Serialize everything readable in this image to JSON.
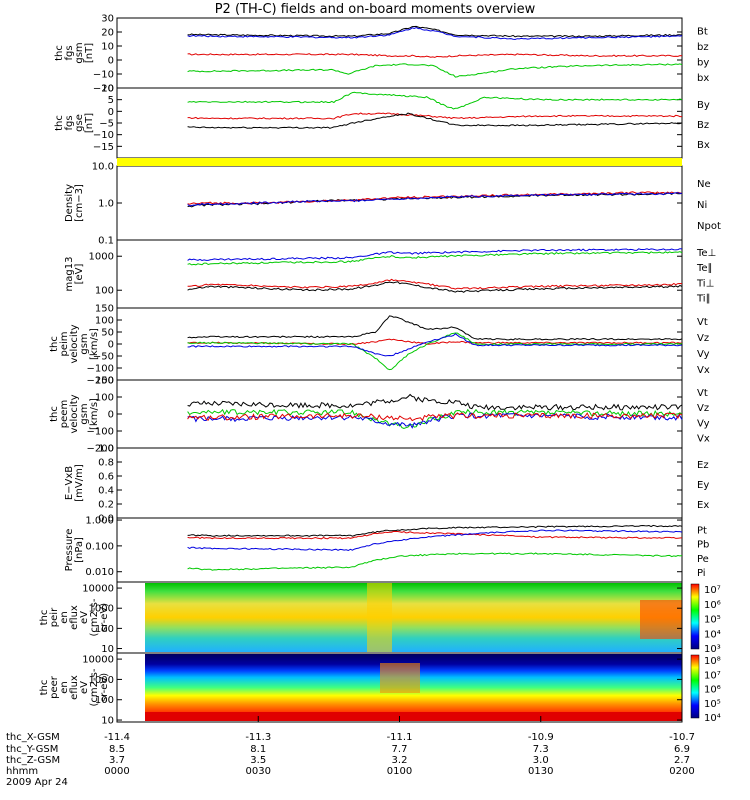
{
  "title": "P2 (TH-C) fields and on-board moments overview",
  "colors": {
    "black": "#000000",
    "red": "#e00000",
    "green": "#00c800",
    "blue": "#0000e0",
    "yellow": "#ffff00",
    "gray": "#b4b4b4"
  },
  "xaxis": {
    "ticks": [
      "0000",
      "0030",
      "0100",
      "0130",
      "0200"
    ],
    "rows": [
      {
        "label": "thc_X-GSM",
        "values": [
          "-11.4",
          "-11.3",
          "-11.1",
          "-10.9",
          "-10.7"
        ]
      },
      {
        "label": "thc_Y-GSM",
        "values": [
          "8.5",
          "8.1",
          "7.7",
          "7.3",
          "6.9"
        ]
      },
      {
        "label": "thc_Z-GSM",
        "values": [
          "3.7",
          "3.5",
          "3.2",
          "3.0",
          "2.7"
        ]
      },
      {
        "label": "hhmm",
        "values": [
          "0000",
          "0030",
          "0100",
          "0130",
          "0200"
        ]
      }
    ],
    "date": "2009 Apr 24"
  },
  "chart_data": [
    {
      "type": "line",
      "ylabel": [
        "thc",
        "fgs",
        "gsm",
        "[nT]"
      ],
      "ylim": [
        -20,
        30
      ],
      "yticks": [
        "30",
        "20",
        "10",
        "0",
        "−10",
        "−20"
      ],
      "ytickvals": [
        30,
        20,
        10,
        0,
        -10,
        -20
      ],
      "legend": [
        {
          "name": "Bt",
          "color": "black"
        },
        {
          "name": "bz",
          "color": "red"
        },
        {
          "name": "by",
          "color": "green"
        },
        {
          "name": "bx",
          "color": "blue"
        }
      ],
      "series": [
        {
          "color": "black",
          "x": [
            0,
            20,
            50,
            58,
            63,
            67,
            72,
            85,
            100,
            120
          ],
          "y": [
            19,
            18,
            17,
            19,
            24,
            22,
            18,
            17,
            17,
            18
          ]
        },
        {
          "color": "blue",
          "x": [
            0,
            20,
            50,
            58,
            63,
            67,
            72,
            85,
            100,
            120
          ],
          "y": [
            18,
            17,
            16,
            18,
            23,
            21,
            17,
            15,
            16,
            17
          ]
        },
        {
          "color": "red",
          "x": [
            0,
            20,
            50,
            58,
            63,
            67,
            72,
            85,
            100,
            120
          ],
          "y": [
            4,
            4,
            4,
            3,
            3,
            2,
            3,
            4,
            3,
            3
          ]
        },
        {
          "color": "green",
          "x": [
            0,
            20,
            46,
            49,
            55,
            62,
            67,
            72,
            85,
            100,
            120
          ],
          "y": [
            -8,
            -8,
            -7,
            -10,
            -4,
            -3,
            -4,
            -12,
            -6,
            -4,
            -3
          ]
        }
      ]
    },
    {
      "type": "line",
      "ylabel": [
        "thc",
        "fgs",
        "gse",
        "[nT]"
      ],
      "ylim": [
        -20,
        10
      ],
      "yticks": [
        "10",
        "5",
        "0",
        "−5",
        "−10",
        "−15"
      ],
      "ytickvals": [
        10,
        5,
        0,
        -5,
        -10,
        -15
      ],
      "legend": [
        {
          "name": "By",
          "color": "green"
        },
        {
          "name": "Bz",
          "color": "red"
        },
        {
          "name": "Bx",
          "color": "black"
        }
      ],
      "series": [
        {
          "color": "green",
          "x": [
            0,
            20,
            46,
            50,
            58,
            66,
            70,
            72,
            78,
            90,
            120
          ],
          "y": [
            4,
            4,
            4,
            8,
            7,
            6,
            2,
            1,
            6,
            5,
            5
          ]
        },
        {
          "color": "red",
          "x": [
            0,
            20,
            46,
            50,
            58,
            66,
            72,
            90,
            120
          ],
          "y": [
            -2,
            -3,
            -3,
            -1,
            -1,
            -2,
            -3,
            -2,
            -2
          ]
        },
        {
          "color": "black",
          "x": [
            0,
            20,
            46,
            50,
            58,
            62,
            66,
            72,
            90,
            120
          ],
          "y": [
            -6,
            -7,
            -7,
            -5,
            -2,
            -1,
            -3,
            -6,
            -6,
            -5
          ]
        }
      ]
    },
    {
      "type": "line",
      "ylabel": [
        "Density",
        "[cm−3]"
      ],
      "log": true,
      "ylim": [
        0.1,
        10
      ],
      "yticks": [
        "10.0",
        "1.0",
        "0.1"
      ],
      "ytickvals": [
        10,
        1,
        0.1
      ],
      "legend": [
        {
          "name": "Ne",
          "color": "red"
        },
        {
          "name": "Ni",
          "color": "black"
        },
        {
          "name": "Npot",
          "color": "blue"
        }
      ],
      "series": [
        {
          "color": "black",
          "x": [
            0,
            10,
            20,
            30,
            40,
            50,
            60,
            70,
            80,
            90,
            100,
            110,
            120
          ],
          "y": [
            0.8,
            0.75,
            0.9,
            0.95,
            1.1,
            1.2,
            1.3,
            1.4,
            1.5,
            1.6,
            1.7,
            1.7,
            1.8
          ]
        },
        {
          "color": "red",
          "x": [
            0,
            10,
            20,
            30,
            40,
            50,
            60,
            70,
            80,
            90,
            100,
            110,
            120
          ],
          "y": [
            0.9,
            0.9,
            1.0,
            1.0,
            1.1,
            1.2,
            1.4,
            1.5,
            1.6,
            1.7,
            1.8,
            1.9,
            1.9
          ]
        },
        {
          "color": "blue",
          "x": [
            0,
            10,
            20,
            30,
            40,
            50,
            60,
            70,
            80,
            90,
            100,
            110,
            120
          ],
          "y": [
            0.85,
            0.8,
            0.95,
            1.0,
            1.1,
            1.15,
            1.3,
            1.45,
            1.55,
            1.65,
            1.7,
            1.75,
            1.8
          ]
        }
      ]
    },
    {
      "type": "line",
      "ylabel": [
        "mag13",
        "[eV]"
      ],
      "log": true,
      "ylim": [
        30,
        3000
      ],
      "yticks": [
        "1000",
        "100"
      ],
      "ytickvals": [
        1000,
        100
      ],
      "legend": [
        {
          "name": "Te⊥",
          "color": "red"
        },
        {
          "name": "Te∥",
          "color": "black"
        },
        {
          "name": "Ti⊥",
          "color": "red"
        },
        {
          "name": "Ti∥",
          "color": "green"
        }
      ],
      "series": [
        {
          "color": "blue",
          "x": [
            0,
            20,
            50,
            58,
            62,
            70,
            90,
            120
          ],
          "y": [
            700,
            800,
            900,
            1300,
            1200,
            1300,
            1500,
            1600
          ]
        },
        {
          "color": "green",
          "x": [
            0,
            20,
            50,
            58,
            62,
            70,
            90,
            120
          ],
          "y": [
            500,
            600,
            700,
            1000,
            900,
            1000,
            1200,
            1300
          ]
        },
        {
          "color": "red",
          "x": [
            0,
            10,
            20,
            40,
            50,
            55,
            58,
            66,
            72,
            90,
            120
          ],
          "y": [
            80,
            100,
            150,
            120,
            130,
            160,
            200,
            150,
            110,
            130,
            150
          ]
        },
        {
          "color": "black",
          "x": [
            0,
            10,
            20,
            40,
            50,
            55,
            58,
            66,
            72,
            90,
            120
          ],
          "y": [
            60,
            80,
            130,
            100,
            110,
            140,
            180,
            120,
            90,
            110,
            130
          ]
        }
      ]
    },
    {
      "type": "line",
      "ylabel": [
        "thc",
        "peim",
        "velocity",
        "gsm",
        "[km/s]"
      ],
      "ylim": [
        -150,
        150
      ],
      "yticks": [
        "150",
        "100",
        "50",
        "0",
        "−50",
        "−100",
        "−150"
      ],
      "ytickvals": [
        150,
        100,
        50,
        0,
        -50,
        -100,
        -150
      ],
      "legend": [
        {
          "name": "Vt",
          "color": "black"
        },
        {
          "name": "Vz",
          "color": "red"
        },
        {
          "name": "Vy",
          "color": "green"
        },
        {
          "name": "Vx",
          "color": "blue"
        }
      ],
      "series": [
        {
          "color": "black",
          "x": [
            0,
            20,
            50,
            55,
            58,
            62,
            66,
            72,
            76,
            120
          ],
          "y": [
            20,
            30,
            30,
            50,
            120,
            90,
            60,
            70,
            20,
            20
          ]
        },
        {
          "color": "red",
          "x": [
            0,
            20,
            50,
            55,
            58,
            62,
            66,
            72,
            76,
            120
          ],
          "y": [
            5,
            5,
            0,
            10,
            20,
            10,
            0,
            10,
            5,
            5
          ]
        },
        {
          "color": "green",
          "x": [
            0,
            20,
            50,
            55,
            58,
            62,
            66,
            72,
            76,
            120
          ],
          "y": [
            0,
            5,
            0,
            -60,
            -110,
            -40,
            0,
            50,
            0,
            0
          ]
        },
        {
          "color": "blue",
          "x": [
            0,
            20,
            50,
            55,
            58,
            62,
            66,
            72,
            76,
            120
          ],
          "y": [
            -10,
            -10,
            -10,
            -40,
            -50,
            -20,
            10,
            40,
            -5,
            -5
          ]
        }
      ]
    },
    {
      "type": "line",
      "ylabel": [
        "thc",
        "peem",
        "velocity",
        "gsm",
        "[km/s]"
      ],
      "ylim": [
        -200,
        200
      ],
      "yticks": [
        "200",
        "100",
        "0",
        "−100",
        "−200"
      ],
      "ytickvals": [
        200,
        100,
        0,
        -100,
        -200
      ],
      "legend": [
        {
          "name": "Vt",
          "color": "black"
        },
        {
          "name": "Vz",
          "color": "red"
        },
        {
          "name": "Vy",
          "color": "green"
        },
        {
          "name": "Vx",
          "color": "blue"
        }
      ],
      "series": [
        {
          "color": "black",
          "x": [
            0,
            20,
            50,
            58,
            62,
            66,
            72,
            76,
            120
          ],
          "y": [
            50,
            60,
            50,
            80,
            100,
            80,
            70,
            40,
            40
          ]
        },
        {
          "color": "green",
          "x": [
            0,
            20,
            50,
            58,
            62,
            66,
            72,
            76,
            120
          ],
          "y": [
            20,
            10,
            10,
            -60,
            -80,
            -40,
            10,
            10,
            0
          ]
        },
        {
          "color": "blue",
          "x": [
            0,
            20,
            50,
            58,
            62,
            66,
            72,
            76,
            120
          ],
          "y": [
            -20,
            -30,
            -20,
            -60,
            -70,
            -40,
            -10,
            -10,
            -20
          ]
        },
        {
          "color": "red",
          "x": [
            0,
            20,
            50,
            58,
            62,
            66,
            72,
            76,
            120
          ],
          "y": [
            -10,
            -20,
            -10,
            -20,
            -30,
            -20,
            -10,
            -10,
            -10
          ]
        }
      ]
    },
    {
      "type": "line",
      "ylabel": [
        "E−VxB",
        "[mV/m]"
      ],
      "ylim": [
        0,
        1
      ],
      "yticks": [
        "1.0",
        "0.8",
        "0.6",
        "0.4",
        "0.2",
        "0.0"
      ],
      "ytickvals": [
        1,
        0.8,
        0.6,
        0.4,
        0.2,
        0
      ],
      "legend": [
        {
          "name": "Ez",
          "color": "red"
        },
        {
          "name": "Ey",
          "color": "green"
        },
        {
          "name": "Ex",
          "color": "blue"
        }
      ],
      "series": []
    },
    {
      "type": "line",
      "ylabel": [
        "Pressure",
        "[nPa]"
      ],
      "log": true,
      "ylim": [
        0.004,
        1.2
      ],
      "yticks": [
        "1.000",
        "0.100",
        "0.010"
      ],
      "ytickvals": [
        1,
        0.1,
        0.01
      ],
      "legend": [
        {
          "name": "Pt",
          "color": "black"
        },
        {
          "name": "Pb",
          "color": "red"
        },
        {
          "name": "Pe",
          "color": "green"
        },
        {
          "name": "Pi",
          "color": "blue"
        }
      ],
      "series": [
        {
          "color": "black",
          "x": [
            0,
            20,
            50,
            58,
            70,
            90,
            120
          ],
          "y": [
            0.3,
            0.25,
            0.25,
            0.4,
            0.5,
            0.55,
            0.6
          ]
        },
        {
          "color": "red",
          "x": [
            0,
            20,
            50,
            58,
            70,
            90,
            120
          ],
          "y": [
            0.25,
            0.2,
            0.2,
            0.35,
            0.3,
            0.22,
            0.2
          ]
        },
        {
          "color": "blue",
          "x": [
            0,
            20,
            50,
            58,
            70,
            90,
            120
          ],
          "y": [
            0.1,
            0.08,
            0.07,
            0.15,
            0.25,
            0.4,
            0.35
          ]
        },
        {
          "color": "green",
          "x": [
            0,
            10,
            20,
            50,
            56,
            60,
            72,
            90,
            120
          ],
          "y": [
            0.02,
            0.015,
            0.012,
            0.015,
            0.03,
            0.04,
            0.05,
            0.05,
            0.04
          ]
        }
      ]
    },
    {
      "type": "heatmap",
      "ylabel": [
        "thc",
        "peir",
        "en",
        "eflux",
        "eV",
        "(cm2-s-",
        "sr-eV)"
      ],
      "log": true,
      "ylim": [
        6,
        20000
      ],
      "yticks": [
        "10000",
        "1000",
        "100",
        "10"
      ],
      "ytickvals": [
        10000,
        1000,
        100,
        10
      ],
      "colorbar": [
        "10⁷",
        "10⁶",
        "10⁵",
        "10⁴",
        "10³"
      ]
    },
    {
      "type": "heatmap",
      "ylabel": [
        "thc",
        "peer",
        "en",
        "eflux",
        "eV",
        "(cm2-s-",
        "sr-eV)"
      ],
      "log": true,
      "ylim": [
        8,
        20000
      ],
      "yticks": [
        "10000",
        "1000",
        "100",
        "10"
      ],
      "ytickvals": [
        10000,
        1000,
        100,
        10
      ],
      "colorbar": [
        "10⁸",
        "10⁷",
        "10⁶",
        "10⁵",
        "10⁴"
      ]
    }
  ]
}
